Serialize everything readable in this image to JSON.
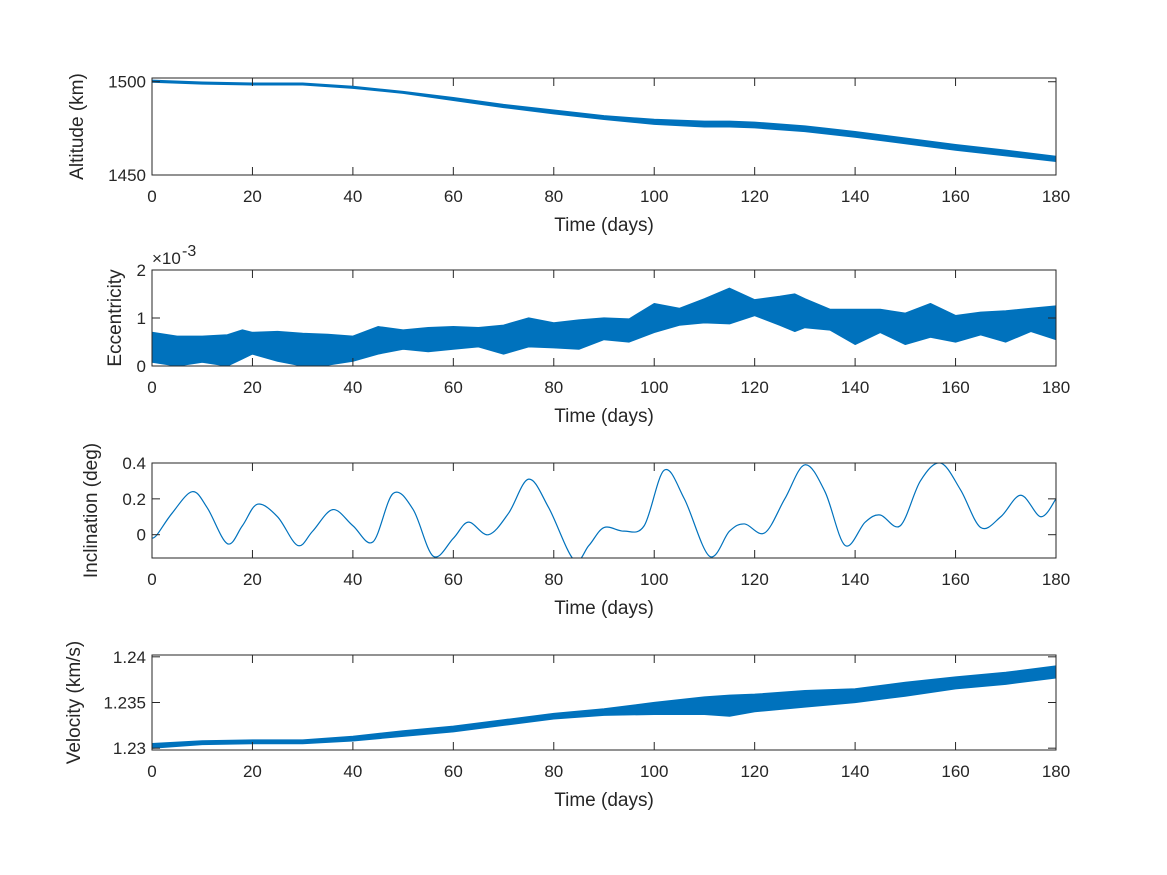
{
  "figure": {
    "colors": {
      "series": "#0072BD",
      "axes": "#262626",
      "background": "#ffffff"
    }
  },
  "chart_data": [
    {
      "type": "area",
      "xlabel": "Time (days)",
      "ylabel": "Altitude (km)",
      "xlim": [
        0,
        180
      ],
      "ylim": [
        1450,
        1502
      ],
      "xticks": [
        0,
        20,
        40,
        60,
        80,
        100,
        120,
        140,
        160,
        180
      ],
      "yticks": [
        1450,
        1500
      ],
      "grid": false,
      "legend": "none",
      "band": {
        "x": [
          0,
          10,
          20,
          30,
          40,
          50,
          60,
          70,
          80,
          90,
          100,
          110,
          115,
          120,
          130,
          140,
          150,
          160,
          170,
          180
        ],
        "upper": [
          1500.8,
          1499.8,
          1499.3,
          1499.3,
          1497.5,
          1494.8,
          1491.5,
          1487.8,
          1484.8,
          1481.8,
          1479.8,
          1478.8,
          1478.8,
          1478.3,
          1476.3,
          1473.3,
          1469.8,
          1466.3,
          1463.3,
          1460.0
        ],
        "lower": [
          1499.8,
          1498.8,
          1498.3,
          1498.3,
          1496.5,
          1493.8,
          1490.0,
          1486.2,
          1482.8,
          1479.8,
          1477.2,
          1475.8,
          1475.8,
          1475.3,
          1473.3,
          1470.3,
          1466.8,
          1463.3,
          1460.3,
          1457.3
        ]
      }
    },
    {
      "type": "area",
      "xlabel": "Time (days)",
      "ylabel": "Eccentricity",
      "exponent_label": "×10",
      "exponent": "-3",
      "xlim": [
        0,
        180
      ],
      "ylim": [
        0,
        2
      ],
      "xticks": [
        0,
        20,
        40,
        60,
        80,
        100,
        120,
        140,
        160,
        180
      ],
      "yticks": [
        0,
        1,
        2
      ],
      "grid": false,
      "legend": "none",
      "band": {
        "x": [
          0,
          5,
          10,
          15,
          18,
          20,
          25,
          30,
          35,
          40,
          45,
          50,
          55,
          60,
          65,
          70,
          75,
          80,
          85,
          90,
          95,
          100,
          105,
          110,
          115,
          120,
          125,
          128,
          130,
          135,
          140,
          145,
          150,
          155,
          160,
          165,
          170,
          175,
          180
        ],
        "upper": [
          0.7,
          0.62,
          0.62,
          0.65,
          0.75,
          0.7,
          0.72,
          0.68,
          0.66,
          0.62,
          0.82,
          0.75,
          0.8,
          0.82,
          0.8,
          0.85,
          1.0,
          0.9,
          0.96,
          1.0,
          0.98,
          1.3,
          1.2,
          1.4,
          1.62,
          1.38,
          1.45,
          1.5,
          1.4,
          1.18,
          1.18,
          1.18,
          1.1,
          1.3,
          1.05,
          1.12,
          1.15,
          1.2,
          1.25
        ],
        "lower": [
          0.08,
          0.0,
          0.08,
          0.0,
          0.15,
          0.25,
          0.1,
          0.0,
          0.02,
          0.1,
          0.25,
          0.35,
          0.3,
          0.35,
          0.4,
          0.25,
          0.4,
          0.38,
          0.35,
          0.55,
          0.5,
          0.7,
          0.85,
          0.9,
          0.88,
          1.05,
          0.85,
          0.72,
          0.8,
          0.75,
          0.45,
          0.7,
          0.45,
          0.6,
          0.5,
          0.65,
          0.5,
          0.72,
          0.55
        ]
      }
    },
    {
      "type": "line",
      "xlabel": "Time (days)",
      "ylabel": "Inclination (deg)",
      "xlim": [
        0,
        180
      ],
      "ylim": [
        -0.13,
        0.4
      ],
      "xticks": [
        0,
        20,
        40,
        60,
        80,
        100,
        120,
        140,
        160,
        180
      ],
      "yticks": [
        0,
        0.2,
        0.4
      ],
      "grid": false,
      "legend": "none",
      "series": [
        {
          "x": [
            0,
            1,
            4,
            8,
            11,
            15,
            18,
            21,
            25,
            29,
            32,
            36,
            40,
            44,
            48,
            52,
            56,
            60,
            63,
            67,
            71,
            75,
            79,
            84,
            87,
            90,
            94,
            98,
            102,
            106,
            111,
            115,
            118,
            122,
            126,
            130,
            134,
            138,
            142,
            145,
            149,
            153,
            157,
            161,
            165,
            169,
            173,
            177,
            180
          ],
          "y": [
            -0.02,
            0.0,
            0.12,
            0.24,
            0.15,
            -0.05,
            0.05,
            0.17,
            0.1,
            -0.06,
            0.02,
            0.14,
            0.05,
            -0.04,
            0.23,
            0.14,
            -0.12,
            -0.02,
            0.07,
            0.0,
            0.12,
            0.31,
            0.15,
            -0.14,
            -0.06,
            0.04,
            0.02,
            0.05,
            0.36,
            0.2,
            -0.12,
            0.02,
            0.06,
            0.01,
            0.2,
            0.39,
            0.24,
            -0.06,
            0.07,
            0.11,
            0.05,
            0.3,
            0.4,
            0.25,
            0.04,
            0.1,
            0.22,
            0.1,
            0.2
          ]
        }
      ]
    },
    {
      "type": "area",
      "xlabel": "Time (days)",
      "ylabel": "Velocity (km/s)",
      "xlim": [
        0,
        180
      ],
      "ylim": [
        1.2298,
        1.2402
      ],
      "xticks": [
        0,
        20,
        40,
        60,
        80,
        100,
        120,
        140,
        160,
        180
      ],
      "yticks": [
        1.23,
        1.235,
        1.24
      ],
      "ytick_labels": [
        "1.23",
        "1.235",
        "1.24"
      ],
      "grid": false,
      "legend": "none",
      "band": {
        "x": [
          0,
          10,
          20,
          30,
          40,
          50,
          60,
          70,
          80,
          90,
          100,
          110,
          115,
          120,
          130,
          140,
          150,
          160,
          170,
          180
        ],
        "upper": [
          1.2305,
          1.2308,
          1.2309,
          1.2309,
          1.2313,
          1.2319,
          1.2324,
          1.2331,
          1.2338,
          1.2343,
          1.235,
          1.2356,
          1.2358,
          1.2359,
          1.2363,
          1.2365,
          1.2372,
          1.2378,
          1.2383,
          1.239
        ],
        "lower": [
          1.23,
          1.2304,
          1.2305,
          1.2305,
          1.2308,
          1.2313,
          1.2318,
          1.2325,
          1.2332,
          1.2336,
          1.2337,
          1.2337,
          1.2335,
          1.234,
          1.2345,
          1.235,
          1.2357,
          1.2365,
          1.237,
          1.2377
        ]
      }
    }
  ]
}
